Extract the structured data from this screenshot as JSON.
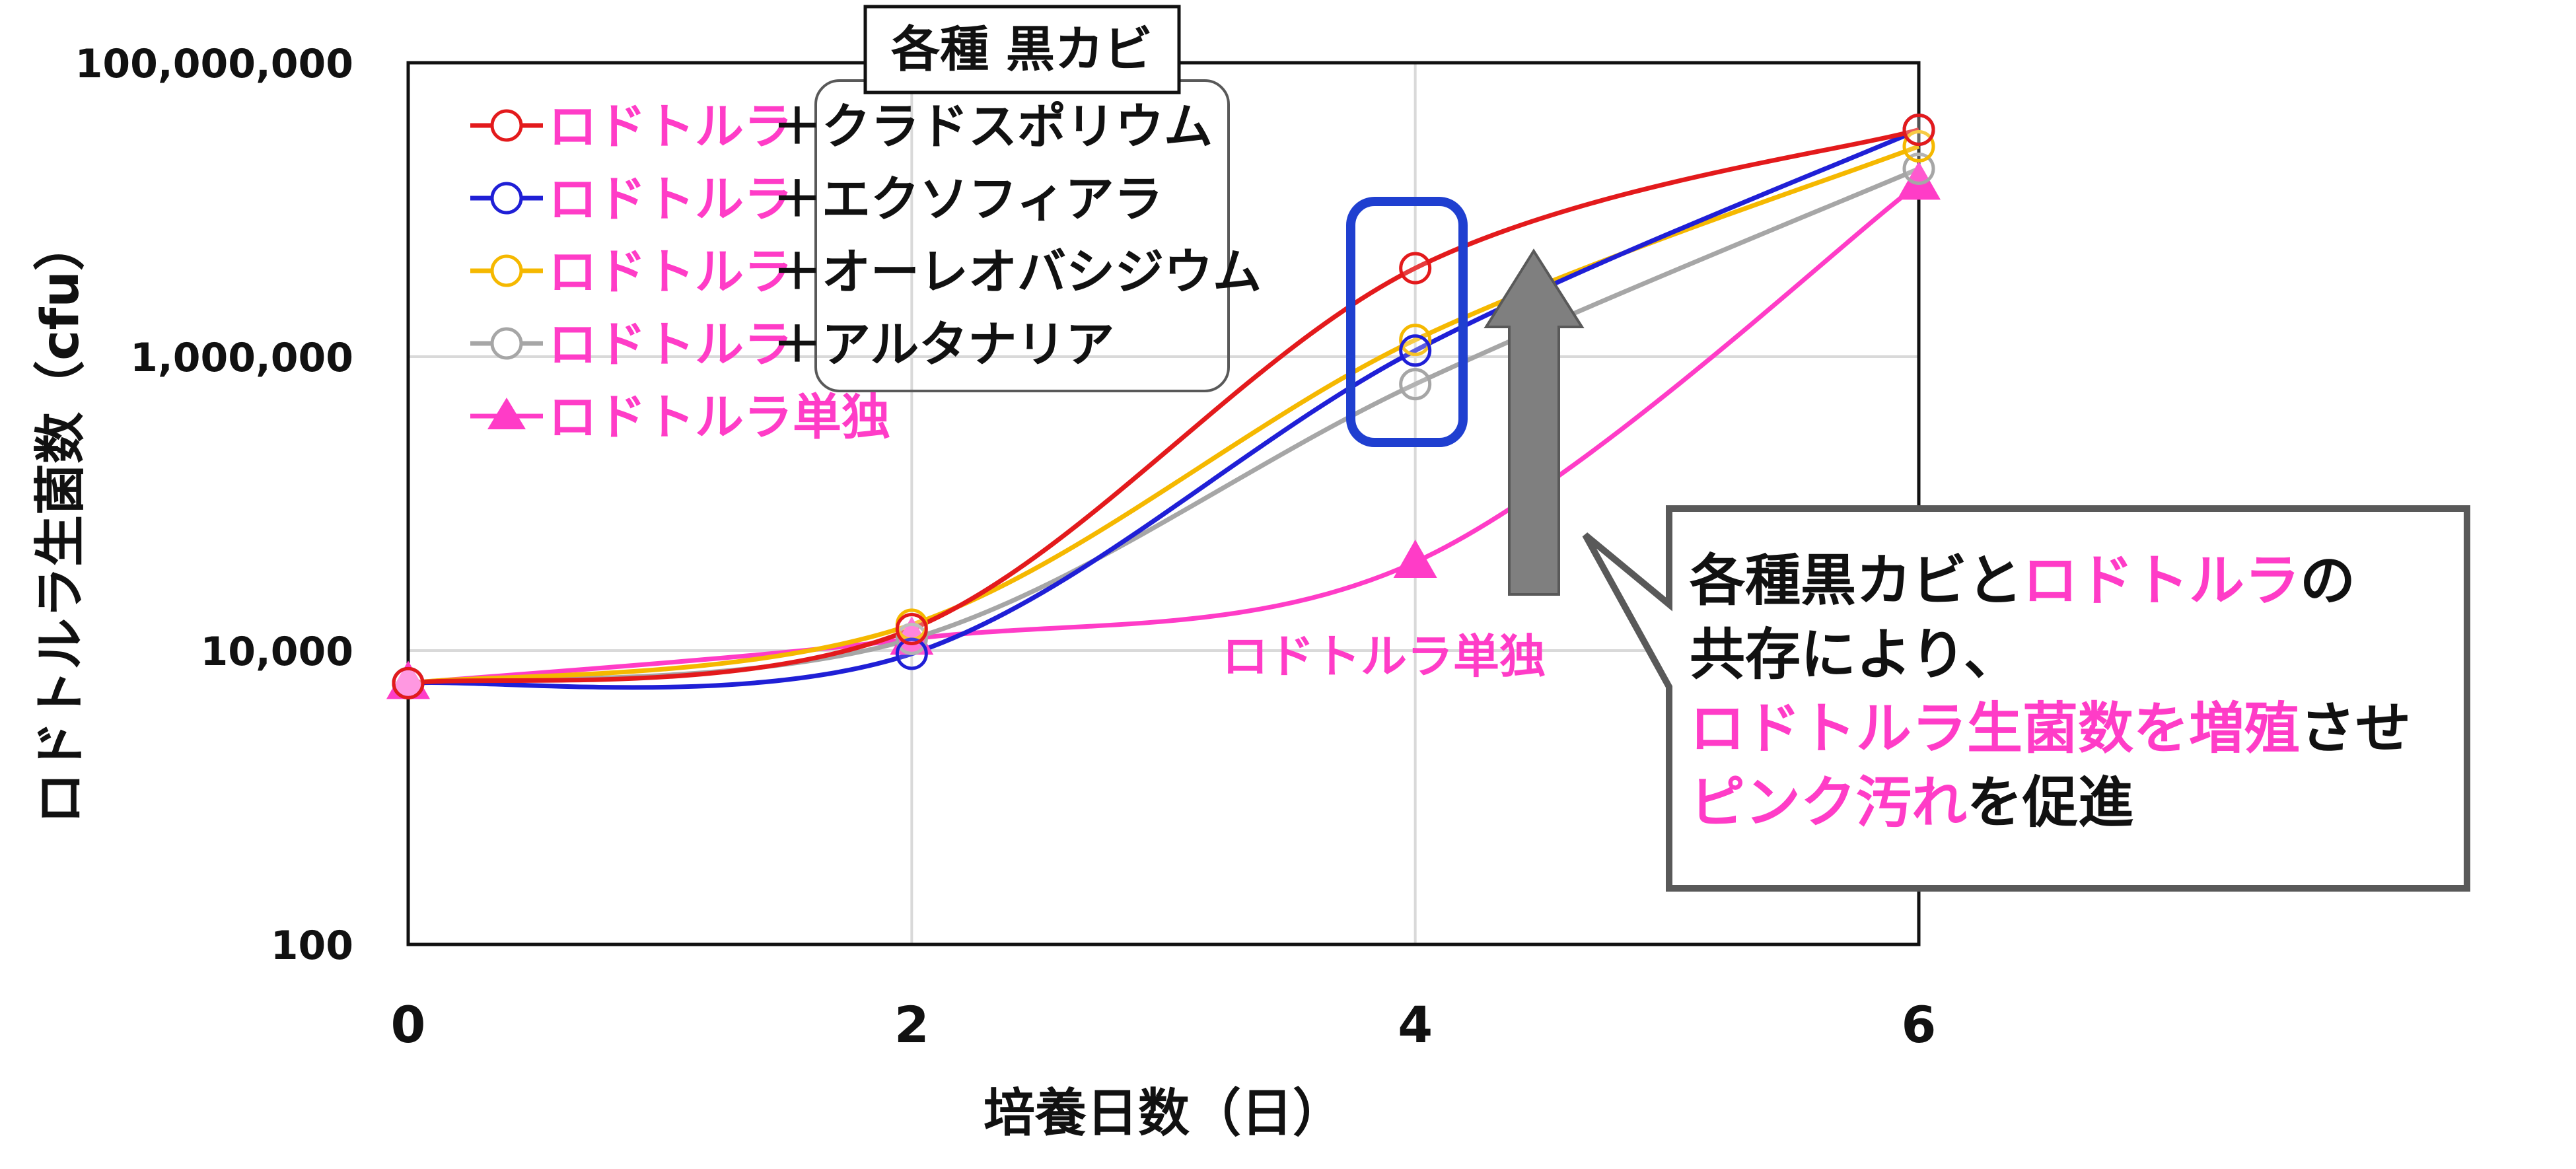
{
  "chart_data": {
    "type": "line",
    "x_scale": "linear",
    "y_scale": "log",
    "xlabel": "培養日数（日）",
    "ylabel": "ロドトルラ生菌数（cfu）",
    "xlim": [
      0,
      6
    ],
    "ylim": [
      100,
      100000000
    ],
    "x_ticks": [
      0,
      2,
      4,
      6
    ],
    "x_tick_labels": [
      "0",
      "2",
      "4",
      "6"
    ],
    "y_ticks": [
      100,
      10000,
      1000000,
      100000000
    ],
    "y_tick_labels": [
      "100",
      "10,000",
      "1,000,000",
      "100,000,000"
    ],
    "grid": true,
    "legend_title": "各種 黒カビ",
    "legend_position": "top-left",
    "series": [
      {
        "name_pink": "ロドトルラ",
        "name_black": "＋クラドスポリウム",
        "color": "#e31a1c",
        "marker": "circle",
        "x": [
          0,
          2,
          4,
          6
        ],
        "y": [
          6000,
          14000,
          4000000,
          35000000
        ]
      },
      {
        "name_pink": "ロドトルラ",
        "name_black": "＋エクソフィアラ",
        "color": "#1f1fd6",
        "marker": "circle",
        "x": [
          0,
          2,
          4,
          6
        ],
        "y": [
          6000,
          9500,
          1100000,
          35000000
        ]
      },
      {
        "name_pink": "ロドトルラ",
        "name_black": "＋オーレオバシジウム",
        "color": "#f5b800",
        "marker": "circle",
        "x": [
          0,
          2,
          4,
          6
        ],
        "y": [
          6000,
          15000,
          1300000,
          27000000
        ]
      },
      {
        "name_pink": "ロドトルラ",
        "name_black": "＋アルタナリア",
        "color": "#a6a6a6",
        "marker": "circle",
        "x": [
          0,
          2,
          4,
          6
        ],
        "y": [
          6000,
          12000,
          650000,
          19000000
        ]
      },
      {
        "name_pink": "ロドトルラ単独",
        "name_black": "",
        "color": "#ff3cc7",
        "marker": "triangle",
        "x": [
          0,
          2,
          4,
          6
        ],
        "y": [
          6000,
          12000,
          40000,
          15000000
        ]
      }
    ],
    "annotations": {
      "single_label": "ロドトルラ単独",
      "callout_lines": [
        [
          {
            "t": "各種黒カビと",
            "pink": false
          },
          {
            "t": "ロドトルラ",
            "pink": true
          },
          {
            "t": "の",
            "pink": false
          }
        ],
        [
          {
            "t": "共存により、",
            "pink": false
          }
        ],
        [
          {
            "t": "ロドトルラ生菌数を増殖",
            "pink": true
          },
          {
            "t": "させ",
            "pink": false
          }
        ],
        [
          {
            "t": "ピンク汚れ",
            "pink": true
          },
          {
            "t": "を促進",
            "pink": false
          }
        ]
      ]
    }
  },
  "colors": {
    "pink": "#ff3cc7",
    "text": "#111111",
    "grid": "#d9d9d9",
    "highlight_box": "#1f3fd0",
    "arrow": "#7f7f7f",
    "callout_border": "#595959"
  }
}
